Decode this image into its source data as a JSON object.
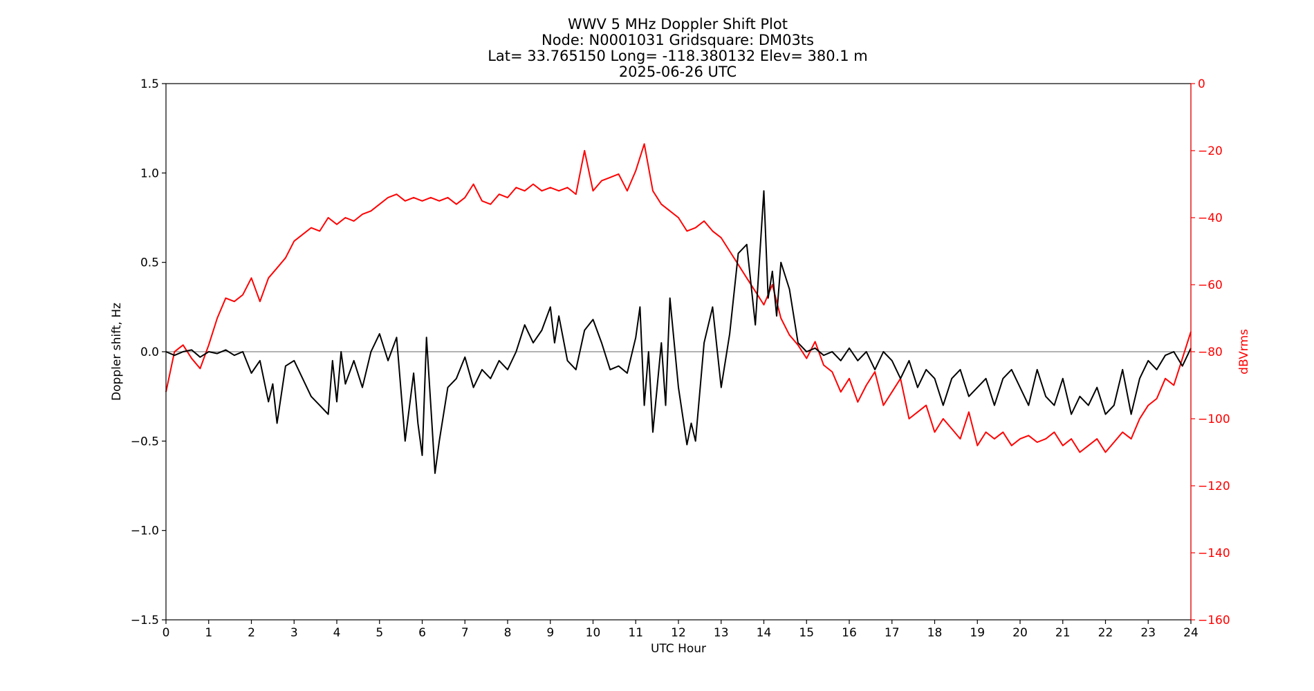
{
  "chart_data": {
    "type": "line",
    "title_lines": [
      "WWV 5 MHz Doppler Shift Plot",
      "Node:  N0001031     Gridsquare:  DM03ts",
      "Lat= 33.765150    Long= -118.380132    Elev= 380.1 m",
      "2025-06-26  UTC"
    ],
    "xlabel": "UTC Hour",
    "ylabel_left": "Doppler shift, Hz",
    "ylabel_right": "dBVrms",
    "xlim": [
      0,
      24
    ],
    "ylim_left": [
      -1.5,
      1.5
    ],
    "ylim_right": [
      -160,
      0
    ],
    "x_ticks": [
      "0",
      "1",
      "2",
      "3",
      "4",
      "5",
      "6",
      "7",
      "8",
      "9",
      "10",
      "11",
      "12",
      "13",
      "14",
      "15",
      "16",
      "17",
      "18",
      "19",
      "20",
      "21",
      "22",
      "23",
      "24"
    ],
    "y_ticks_left": [
      "1.5",
      "1.0",
      "0.5",
      "0.0",
      "−0.5",
      "−1.0",
      "−1.5"
    ],
    "y_ticks_right": [
      "0",
      "−20",
      "−40",
      "−60",
      "−80",
      "−100",
      "−120",
      "−140",
      "−160"
    ],
    "grid": false,
    "zero_line": 0.0,
    "colors": {
      "doppler": "#000000",
      "power": "#ff0000",
      "zero_line": "#999999",
      "right_axis": "#ff0000"
    },
    "series": [
      {
        "axis": "left",
        "x": [
          0,
          0.2,
          0.4,
          0.6,
          0.8,
          1.0,
          1.2,
          1.4,
          1.6,
          1.8,
          2.0,
          2.2,
          2.4,
          2.5,
          2.6,
          2.8,
          3.0,
          3.2,
          3.4,
          3.6,
          3.8,
          3.9,
          4.0,
          4.1,
          4.2,
          4.4,
          4.6,
          4.8,
          5.0,
          5.2,
          5.4,
          5.6,
          5.8,
          5.9,
          6.0,
          6.1,
          6.2,
          6.3,
          6.4,
          6.6,
          6.8,
          7.0,
          7.2,
          7.4,
          7.6,
          7.8,
          8.0,
          8.2,
          8.4,
          8.6,
          8.8,
          9.0,
          9.1,
          9.2,
          9.4,
          9.6,
          9.8,
          10.0,
          10.2,
          10.4,
          10.6,
          10.8,
          11.0,
          11.1,
          11.2,
          11.3,
          11.4,
          11.6,
          11.7,
          11.8,
          12.0,
          12.2,
          12.3,
          12.4,
          12.6,
          12.8,
          13.0,
          13.2,
          13.4,
          13.6,
          13.8,
          14.0,
          14.1,
          14.2,
          14.3,
          14.4,
          14.6,
          14.8,
          15.0,
          15.2,
          15.4,
          15.6,
          15.8,
          16.0,
          16.2,
          16.4,
          16.6,
          16.8,
          17.0,
          17.2,
          17.4,
          17.6,
          17.8,
          18.0,
          18.2,
          18.4,
          18.6,
          18.8,
          19.0,
          19.2,
          19.4,
          19.6,
          19.8,
          20.0,
          20.2,
          20.4,
          20.6,
          20.8,
          21.0,
          21.2,
          21.4,
          21.6,
          21.8,
          22.0,
          22.2,
          22.4,
          22.6,
          22.8,
          23.0,
          23.2,
          23.4,
          23.6,
          23.8,
          24.0
        ],
        "y": [
          0,
          -0.02,
          0,
          0.01,
          -0.03,
          0,
          -0.01,
          0.01,
          -0.02,
          0,
          -0.12,
          -0.05,
          -0.28,
          -0.18,
          -0.4,
          -0.08,
          -0.05,
          -0.15,
          -0.25,
          -0.3,
          -0.35,
          -0.05,
          -0.28,
          0,
          -0.18,
          -0.05,
          -0.2,
          0,
          0.1,
          -0.05,
          0.08,
          -0.5,
          -0.12,
          -0.4,
          -0.58,
          0.08,
          -0.3,
          -0.68,
          -0.5,
          -0.2,
          -0.15,
          -0.03,
          -0.2,
          -0.1,
          -0.15,
          -0.05,
          -0.1,
          0,
          0.15,
          0.05,
          0.12,
          0.25,
          0.05,
          0.2,
          -0.05,
          -0.1,
          0.12,
          0.18,
          0.05,
          -0.1,
          -0.08,
          -0.12,
          0.08,
          0.25,
          -0.3,
          0,
          -0.45,
          0.05,
          -0.3,
          0.3,
          -0.2,
          -0.52,
          -0.4,
          -0.5,
          0.05,
          0.25,
          -0.2,
          0.1,
          0.55,
          0.6,
          0.15,
          0.9,
          0.3,
          0.45,
          0.2,
          0.5,
          0.35,
          0.05,
          0,
          0.02,
          -0.02,
          0,
          -0.05,
          0.02,
          -0.05,
          0,
          -0.1,
          0,
          -0.05,
          -0.15,
          -0.05,
          -0.2,
          -0.1,
          -0.15,
          -0.3,
          -0.15,
          -0.1,
          -0.25,
          -0.2,
          -0.15,
          -0.3,
          -0.15,
          -0.1,
          -0.2,
          -0.3,
          -0.1,
          -0.25,
          -0.3,
          -0.15,
          -0.35,
          -0.25,
          -0.3,
          -0.2,
          -0.35,
          -0.3,
          -0.1,
          -0.35,
          -0.15,
          -0.05,
          -0.1,
          -0.02,
          0,
          -0.08,
          0.02
        ]
      },
      {
        "axis": "right",
        "x": [
          0,
          0.2,
          0.4,
          0.6,
          0.8,
          1.0,
          1.2,
          1.4,
          1.6,
          1.8,
          2.0,
          2.2,
          2.4,
          2.6,
          2.8,
          3.0,
          3.2,
          3.4,
          3.6,
          3.8,
          4.0,
          4.2,
          4.4,
          4.6,
          4.8,
          5.0,
          5.2,
          5.4,
          5.6,
          5.8,
          6.0,
          6.2,
          6.4,
          6.6,
          6.8,
          7.0,
          7.2,
          7.4,
          7.6,
          7.8,
          8.0,
          8.2,
          8.4,
          8.6,
          8.8,
          9.0,
          9.2,
          9.4,
          9.6,
          9.8,
          10.0,
          10.2,
          10.4,
          10.6,
          10.8,
          11.0,
          11.2,
          11.4,
          11.6,
          11.8,
          12.0,
          12.2,
          12.4,
          12.6,
          12.8,
          13.0,
          13.2,
          13.4,
          13.6,
          13.8,
          14.0,
          14.2,
          14.4,
          14.6,
          14.8,
          15.0,
          15.2,
          15.4,
          15.6,
          15.8,
          16.0,
          16.2,
          16.4,
          16.6,
          16.8,
          17.0,
          17.2,
          17.4,
          17.6,
          17.8,
          18.0,
          18.2,
          18.4,
          18.6,
          18.8,
          19.0,
          19.2,
          19.4,
          19.6,
          19.8,
          20.0,
          20.2,
          20.4,
          20.6,
          20.8,
          21.0,
          21.2,
          21.4,
          21.6,
          21.8,
          22.0,
          22.2,
          22.4,
          22.6,
          22.8,
          23.0,
          23.2,
          23.4,
          23.6,
          23.8,
          24.0
        ],
        "y": [
          -92,
          -80,
          -78,
          -82,
          -85,
          -78,
          -70,
          -64,
          -65,
          -63,
          -58,
          -65,
          -58,
          -55,
          -52,
          -47,
          -45,
          -43,
          -44,
          -40,
          -42,
          -40,
          -41,
          -39,
          -38,
          -36,
          -34,
          -33,
          -35,
          -34,
          -35,
          -34,
          -35,
          -34,
          -36,
          -34,
          -30,
          -35,
          -36,
          -33,
          -34,
          -31,
          -32,
          -30,
          -32,
          -31,
          -32,
          -31,
          -33,
          -20,
          -32,
          -29,
          -28,
          -27,
          -32,
          -26,
          -18,
          -32,
          -36,
          -38,
          -40,
          -44,
          -43,
          -41,
          -44,
          -46,
          -50,
          -54,
          -58,
          -62,
          -66,
          -60,
          -70,
          -75,
          -78,
          -82,
          -77,
          -84,
          -86,
          -92,
          -88,
          -95,
          -90,
          -86,
          -96,
          -92,
          -88,
          -100,
          -98,
          -96,
          -104,
          -100,
          -103,
          -106,
          -98,
          -108,
          -104,
          -106,
          -104,
          -108,
          -106,
          -105,
          -107,
          -106,
          -104,
          -108,
          -106,
          -110,
          -108,
          -106,
          -110,
          -107,
          -104,
          -106,
          -100,
          -96,
          -94,
          -88,
          -90,
          -82,
          -74
        ]
      }
    ]
  }
}
